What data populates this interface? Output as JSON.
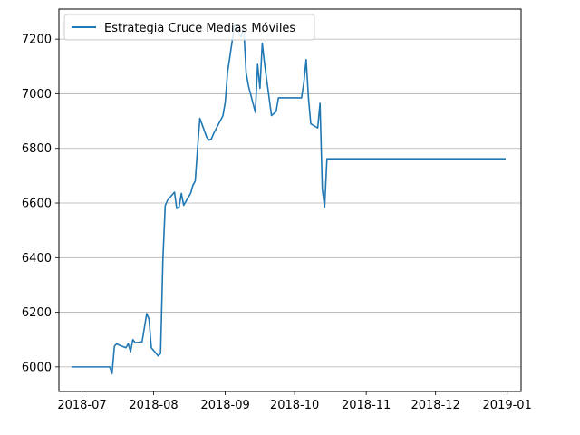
{
  "chart_data": {
    "type": "line",
    "title": "",
    "xlabel": "",
    "ylabel": "",
    "x_type": "date",
    "xlim": [
      "2018-06-21",
      "2019-01-07"
    ],
    "ylim": [
      5910,
      7310
    ],
    "x_ticks": [
      "2018-07-01",
      "2018-08-01",
      "2018-09-01",
      "2018-10-01",
      "2018-11-01",
      "2018-12-01",
      "2019-01-01"
    ],
    "x_tick_labels": [
      "2018-07",
      "2018-08",
      "2018-09",
      "2018-10",
      "2018-11",
      "2018-12",
      "2019-01"
    ],
    "y_ticks": [
      6000,
      6200,
      6400,
      6600,
      6800,
      7000,
      7200
    ],
    "y_tick_labels": [
      "6000",
      "6200",
      "6400",
      "6600",
      "6800",
      "7000",
      "7200"
    ],
    "grid": "horizontal",
    "legend": "top-left",
    "series": [
      {
        "name": "Estrategia Cruce Medias Móviles",
        "color": "#1f77b4",
        "points": [
          [
            "2018-06-27",
            6000
          ],
          [
            "2018-07-13",
            6000
          ],
          [
            "2018-07-14",
            5975
          ],
          [
            "2018-07-15",
            6075
          ],
          [
            "2018-07-16",
            6085
          ],
          [
            "2018-07-17",
            6080
          ],
          [
            "2018-07-20",
            6070
          ],
          [
            "2018-07-21",
            6085
          ],
          [
            "2018-07-22",
            6055
          ],
          [
            "2018-07-23",
            6100
          ],
          [
            "2018-07-24",
            6088
          ],
          [
            "2018-07-27",
            6092
          ],
          [
            "2018-07-29",
            6195
          ],
          [
            "2018-07-30",
            6175
          ],
          [
            "2018-07-31",
            6070
          ],
          [
            "2018-08-03",
            6040
          ],
          [
            "2018-08-04",
            6050
          ],
          [
            "2018-08-05",
            6390
          ],
          [
            "2018-08-06",
            6590
          ],
          [
            "2018-08-07",
            6610
          ],
          [
            "2018-08-10",
            6640
          ],
          [
            "2018-08-11",
            6580
          ],
          [
            "2018-08-12",
            6585
          ],
          [
            "2018-08-13",
            6635
          ],
          [
            "2018-08-14",
            6592
          ],
          [
            "2018-08-17",
            6635
          ],
          [
            "2018-08-18",
            6665
          ],
          [
            "2018-08-19",
            6680
          ],
          [
            "2018-08-20",
            6800
          ],
          [
            "2018-08-21",
            6910
          ],
          [
            "2018-08-24",
            6840
          ],
          [
            "2018-08-25",
            6830
          ],
          [
            "2018-08-26",
            6835
          ],
          [
            "2018-08-27",
            6855
          ],
          [
            "2018-08-31",
            6920
          ],
          [
            "2018-09-01",
            6970
          ],
          [
            "2018-09-02",
            7080
          ],
          [
            "2018-09-05",
            7250
          ],
          [
            "2018-09-06",
            7255
          ],
          [
            "2018-09-07",
            7215
          ],
          [
            "2018-09-08",
            7210
          ],
          [
            "2018-09-09",
            7240
          ],
          [
            "2018-09-10",
            7080
          ],
          [
            "2018-09-11",
            7030
          ],
          [
            "2018-09-14",
            6932
          ],
          [
            "2018-09-15",
            7108
          ],
          [
            "2018-09-16",
            7020
          ],
          [
            "2018-09-17",
            7185
          ],
          [
            "2018-09-18",
            7110
          ],
          [
            "2018-09-21",
            6920
          ],
          [
            "2018-09-23",
            6935
          ],
          [
            "2018-09-24",
            6985
          ],
          [
            "2018-10-04",
            6985
          ],
          [
            "2018-10-05",
            7040
          ],
          [
            "2018-10-06",
            7125
          ],
          [
            "2018-10-07",
            6985
          ],
          [
            "2018-10-08",
            6890
          ],
          [
            "2018-10-11",
            6875
          ],
          [
            "2018-10-12",
            6965
          ],
          [
            "2018-10-13",
            6650
          ],
          [
            "2018-10-14",
            6585
          ],
          [
            "2018-10-15",
            6762
          ],
          [
            "2018-12-31",
            6762
          ]
        ]
      }
    ]
  }
}
